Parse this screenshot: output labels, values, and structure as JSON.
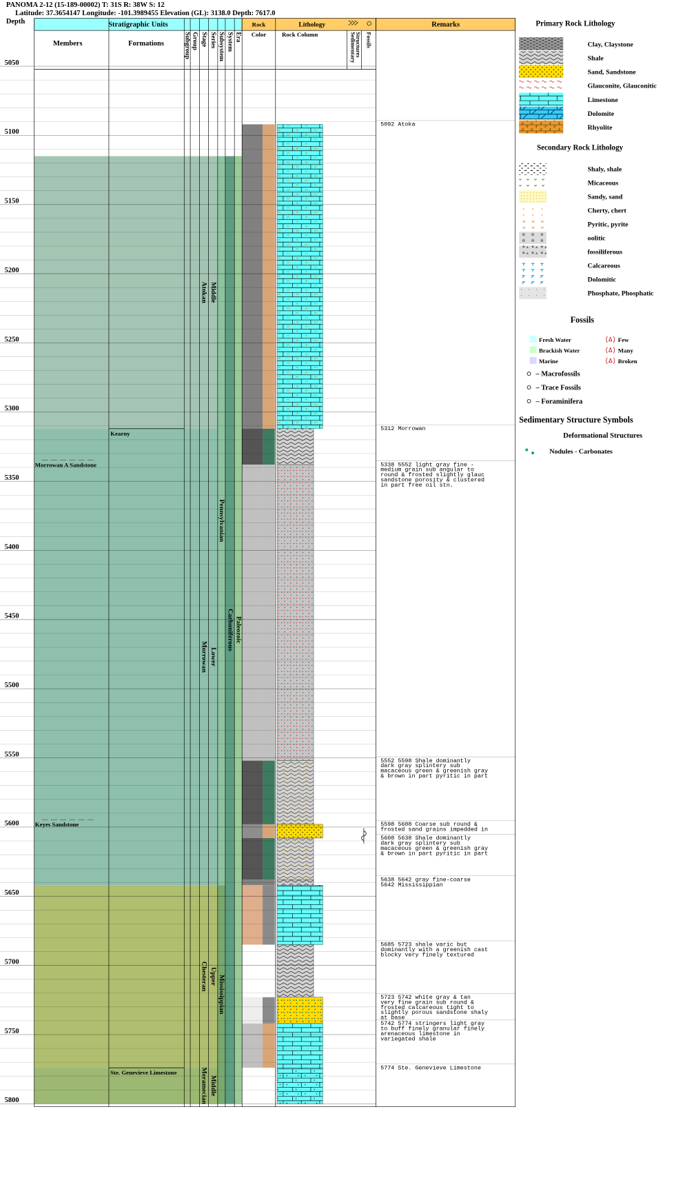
{
  "header": {
    "title": "PANOMA 2-12 (15-189-00002) T: 31S R: 38W S: 12",
    "location": "Latitude: 37.3654147 Longitude: -101.3989455 Elevation (GL): 3138.0 Depth: 7617.0"
  },
  "columns": {
    "depth": "Depth",
    "strat": "Stratigraphic Units",
    "members": "Members",
    "formations": "Formations",
    "subgroup": "Subgroup",
    "group": "Group",
    "stage": "Stage",
    "series": "Series",
    "subsystem": "Subsystem",
    "system": "System",
    "era": "Era",
    "rock_color": [
      "Rock",
      "Color"
    ],
    "lithology": "Lithology",
    "rock_column": "Rock Column",
    "sed": [
      "Sedimentary",
      "Structures"
    ],
    "fossils": "Fossils",
    "remarks": "Remarks"
  },
  "depth_ticks": [
    5050,
    5100,
    5150,
    5200,
    5250,
    5300,
    5350,
    5400,
    5450,
    5500,
    5550,
    5600,
    5650,
    5700,
    5750,
    5800
  ],
  "series": [
    {
      "lines": [
        "Middle",
        "Atokan"
      ],
      "top": 5115,
      "base": 5312,
      "color": "#a4c5b3"
    },
    {
      "lines": [
        "Lower",
        "Morrowan"
      ],
      "top": 5312,
      "base": 5642,
      "color": "#8fc0ae"
    },
    {
      "lines": [
        "Upper",
        "Chesteran"
      ],
      "top": 5642,
      "base": 5774,
      "color": "#afbe6f"
    },
    {
      "lines": [
        "Middle",
        "Meramecian"
      ],
      "top": 5774,
      "base": 5800,
      "color": "#9cb872"
    }
  ],
  "subsystems": [
    {
      "lines": [
        "Pennsylvanian"
      ],
      "top": 5115,
      "base": 5642,
      "color": "#8dc39f"
    },
    {
      "lines": [
        "Mississippian"
      ],
      "top": 5642,
      "base": 5800,
      "color": "#78a86c"
    }
  ],
  "systems": [
    {
      "lines": [
        "Carboniferous"
      ],
      "top": 5115,
      "base": 5800,
      "color": "#5e9d84"
    }
  ],
  "eras": [
    {
      "lines": [
        "Paleozoic"
      ],
      "top": 5115,
      "base": 5800,
      "color": "#9acb97"
    }
  ],
  "formations": [
    {
      "label": "Kearny",
      "top": 5312
    },
    {
      "label": "Ste. Genevieve Limestone",
      "top": 5774
    }
  ],
  "members": [
    {
      "label": "Morrowan A Sandstone",
      "top": 5338
    },
    {
      "label": "Keyes Sandstone",
      "top": 5598
    }
  ],
  "lithology": [
    {
      "top": 5092,
      "base": 5312,
      "pattern": "lime_sandy",
      "color1": "#808080",
      "color2": "#d8a577"
    },
    {
      "top": 5312,
      "base": 5338,
      "pattern": "shale",
      "color1": "#555555",
      "color2": "#3d7a5f"
    },
    {
      "top": 5338,
      "base": 5552,
      "pattern": "sand_shaly",
      "color1": "#c0c0c0",
      "color2": "#c0c0c0"
    },
    {
      "top": 5552,
      "base": 5598,
      "pattern": "shale_sandy",
      "color1": "#555555",
      "color2": "#3d7a5f"
    },
    {
      "top": 5598,
      "base": 5608,
      "pattern": "sandstone",
      "color1": "#8e8e8e",
      "color2": "#d8a577"
    },
    {
      "top": 5608,
      "base": 5638,
      "pattern": "shale_sandy",
      "color1": "#555555",
      "color2": "#3d7a5f"
    },
    {
      "top": 5638,
      "base": 5642,
      "pattern": "shale",
      "color1": "#808080",
      "color2": "#808080"
    },
    {
      "top": 5642,
      "base": 5685,
      "pattern": "limestone",
      "color1": "#dfae8c",
      "color2": "#8a8a8a"
    },
    {
      "top": 5685,
      "base": 5723,
      "pattern": "shale",
      "color1": "#ffffff",
      "color2": "#ffffff"
    },
    {
      "top": 5723,
      "base": 5742,
      "pattern": "sand_glauc",
      "color1": "#eeeeee",
      "color2": "#8a8a8a"
    },
    {
      "top": 5742,
      "base": 5774,
      "pattern": "limestone",
      "color1": "#c0c0c0",
      "color2": "#d8a577"
    },
    {
      "top": 5774,
      "base": 5800,
      "pattern": "lime_dotted",
      "color1": "#ffffff",
      "color2": "#ffffff"
    }
  ],
  "remarks": [
    {
      "top": 5092,
      "lines": [
        "5092 Atoka"
      ]
    },
    {
      "top": 5312,
      "lines": [
        "5312 Morrowan"
      ]
    },
    {
      "top": 5338,
      "lines": [
        "5338 5552 light gray fine -",
        "medium grain sub angular to",
        "round & frosted slightly glauc",
        "sandstone porosity & clustered",
        "in part free oil stn."
      ]
    },
    {
      "top": 5552,
      "lines": [
        "5552 5598 Shale dominantly",
        "dark gray splintery sub",
        "macaceous green & greenish gray",
        "& brown in part pyritic in part"
      ]
    },
    {
      "top": 5598,
      "lines": [
        "5598 5608 Coarse sub round &",
        "frosted sand grains impedded in"
      ]
    },
    {
      "top": 5608,
      "lines": [
        "5608 5638 Shale dominantly",
        "dark gray splintery sub",
        "macaceous green & greenish gray",
        "& brown in part pyritic in part"
      ]
    },
    {
      "top": 5638,
      "lines": [
        "5638 5642 gray fine-coarse",
        "5642 Mississippian"
      ]
    },
    {
      "top": 5685,
      "lines": [
        "5685 5723 shale varic but",
        "dominantly with a greenish cast",
        "blocky very finely textured"
      ]
    },
    {
      "top": 5723,
      "lines": [
        "5723 5742 white gray & tan",
        "very fine grain sub round &",
        "frosted calcareous tight to",
        "slightly porous sandstone shaly",
        "at base"
      ]
    },
    {
      "top": 5742,
      "lines": [
        "5742 5774 stringers light gray",
        "to buff finely granular finely",
        "arenaceous limestone in",
        "variegated shale"
      ]
    },
    {
      "top": 5774,
      "lines": [
        "5774 Ste. Genevieve Limestone"
      ]
    }
  ],
  "legend": {
    "primary_title": "Primary Rock Lithology",
    "primary": [
      {
        "label": "Clay, Claystone",
        "pattern": "clay"
      },
      {
        "label": "Shale",
        "pattern": "shale"
      },
      {
        "label": "Sand, Sandstone",
        "pattern": "sandstone"
      },
      {
        "label": "Glauconite, Glauconitic",
        "pattern": "glauc"
      },
      {
        "label": "Limestone",
        "pattern": "limestone"
      },
      {
        "label": "Dolomite",
        "pattern": "dolomite"
      },
      {
        "label": "Rhyolite",
        "pattern": "rhyolite"
      }
    ],
    "secondary_title": "Secondary Rock Lithology",
    "secondary": [
      {
        "label": "Shaly, shale",
        "pattern": "s_shaly"
      },
      {
        "label": "Micaceous",
        "pattern": "s_mica"
      },
      {
        "label": "Sandy, sand",
        "pattern": "s_sandy"
      },
      {
        "label": "Cherty, chert",
        "pattern": "s_chert"
      },
      {
        "label": "Pyritic, pyrite",
        "pattern": "s_pyrite"
      },
      {
        "label": "oolitic",
        "pattern": "s_oolitic"
      },
      {
        "label": "fossiliferous",
        "pattern": "s_fossil"
      },
      {
        "label": "Calcareous",
        "pattern": "s_calc"
      },
      {
        "label": "Dolomitic",
        "pattern": "s_dolo"
      },
      {
        "label": "Phosphate, Phosphatic",
        "pattern": "s_phos"
      }
    ],
    "fossils_title": "Fossils",
    "environments": [
      {
        "label": "Fresh Water",
        "color": "#ccffff"
      },
      {
        "label": "Brackish Water",
        "color": "#ccffcc"
      },
      {
        "label": "Marine",
        "color": "#d8d8ff"
      }
    ],
    "abundance": [
      "Few",
      "Many",
      "Broken"
    ],
    "fossil_types": [
      "– Macrofossils",
      "– Trace Fossils",
      "– Foraminifera"
    ],
    "sed_title": "Sedimentary Structure Symbols",
    "deform_title": "Deformational Structures",
    "deform": [
      "Nodules - Carbonates"
    ]
  }
}
